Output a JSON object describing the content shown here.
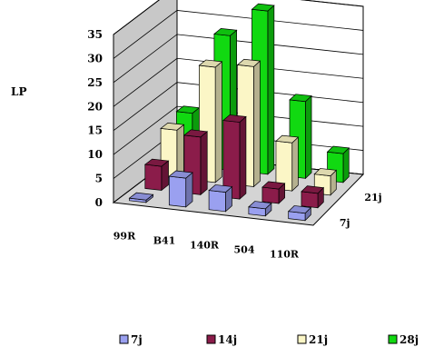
{
  "chart_data": {
    "type": "bar",
    "subtype": "3d-column",
    "title": "",
    "xlabel": "",
    "ylabel": "LP",
    "ylim": [
      0,
      35
    ],
    "yticks": [
      "0",
      "5",
      "10",
      "15",
      "20",
      "25",
      "30",
      "35"
    ],
    "grid": true,
    "legend_position": "bottom",
    "categories": [
      "99R",
      "B41",
      "140R",
      "504",
      "110R"
    ],
    "depth_labels": [
      "7j",
      "21j"
    ],
    "series": [
      {
        "name": "7j",
        "color": "#9aa0f0",
        "values": [
          0.5,
          6,
          4,
          1.5,
          1.5
        ]
      },
      {
        "name": "14j",
        "color": "#8b1c4a",
        "values": [
          5,
          12,
          16,
          3,
          3
        ]
      },
      {
        "name": "21j",
        "color": "#fbf6c6",
        "values": [
          10,
          24,
          25,
          10,
          4
        ]
      },
      {
        "name": "28j",
        "color": "#11d911",
        "values": [
          11,
          28,
          34,
          16,
          6
        ]
      }
    ]
  }
}
